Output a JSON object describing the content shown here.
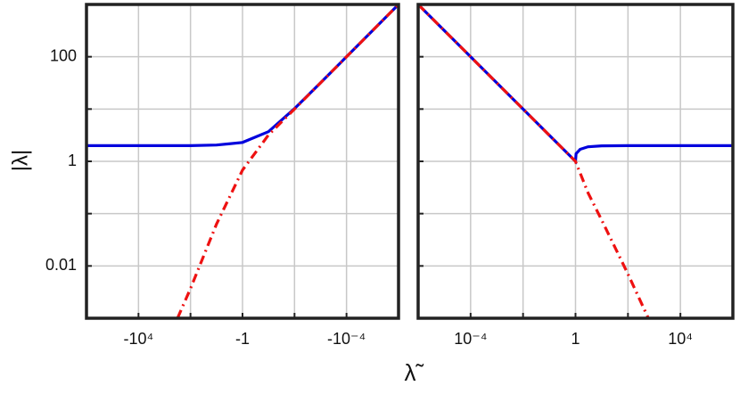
{
  "chart_data": [
    {
      "type": "line",
      "xscale": "log",
      "yscale": "log",
      "ylabel": "|λ|",
      "xlabel": "λ̃",
      "xlim": [
        -1000000,
        -1e-06
      ],
      "ylim": [
        0.001,
        1000
      ],
      "xticks": [
        {
          "value": -10000,
          "label": "-10⁴"
        },
        {
          "value": -1,
          "label": "-1"
        },
        {
          "value": -0.0001,
          "label": "-10⁻⁴"
        }
      ],
      "xminor": [
        -100,
        -0.01
      ],
      "yticks": [
        100,
        1,
        0.01
      ],
      "yminor": [
        10,
        0.1
      ],
      "ytick_labels": true,
      "grid": true,
      "x": [
        -1000000,
        -100000,
        -10000,
        -1000,
        -316,
        -100,
        -10,
        -1,
        -0.1,
        -0.01,
        -0.001,
        -0.0001,
        -1e-05,
        -1e-06
      ],
      "series": [
        {
          "color": "#0000dd",
          "style": "solid",
          "values": [
            2,
            2,
            2,
            2,
            2,
            2,
            2.05,
            2.3,
            3.7,
            10.2,
            31.7,
            100,
            316,
            1000
          ]
        },
        {
          "color": "#ee1111",
          "style": "dashdot",
          "values": [
            null,
            null,
            null,
            null,
            0.001,
            0.0037,
            0.063,
            0.68,
            3.2,
            10,
            31.6,
            100,
            316,
            1000
          ]
        }
      ]
    },
    {
      "type": "line",
      "xscale": "log",
      "yscale": "log",
      "xlim": [
        1e-06,
        1000000
      ],
      "ylim": [
        0.001,
        1000
      ],
      "xticks": [
        {
          "value": 0.0001,
          "label": "10⁻⁴"
        },
        1,
        {
          "value": 10000,
          "label": "10⁴"
        }
      ],
      "xminor": [
        0.01,
        100
      ],
      "yticks": [
        100,
        1,
        0.01
      ],
      "yminor": [
        10,
        0.1
      ],
      "ytick_labels": false,
      "grid": true,
      "x": [
        1e-06,
        1e-05,
        0.0001,
        0.001,
        0.01,
        0.1,
        1,
        1.05,
        1.5,
        3,
        10,
        100,
        600,
        1000,
        10000,
        100000,
        1000000
      ],
      "series": [
        {
          "color": "#0000dd",
          "style": "solid",
          "values": [
            1000,
            316,
            100,
            31.6,
            10,
            3.16,
            1,
            1.4,
            1.7,
            1.9,
            1.98,
            2,
            2,
            2,
            2,
            2,
            2
          ]
        },
        {
          "color": "#ee1111",
          "style": "dashdot",
          "values": [
            1000,
            316,
            100,
            31.6,
            10,
            3.16,
            1,
            0.93,
            0.6,
            0.25,
            0.075,
            0.007,
            0.001,
            null,
            null,
            null,
            null
          ]
        }
      ]
    }
  ]
}
